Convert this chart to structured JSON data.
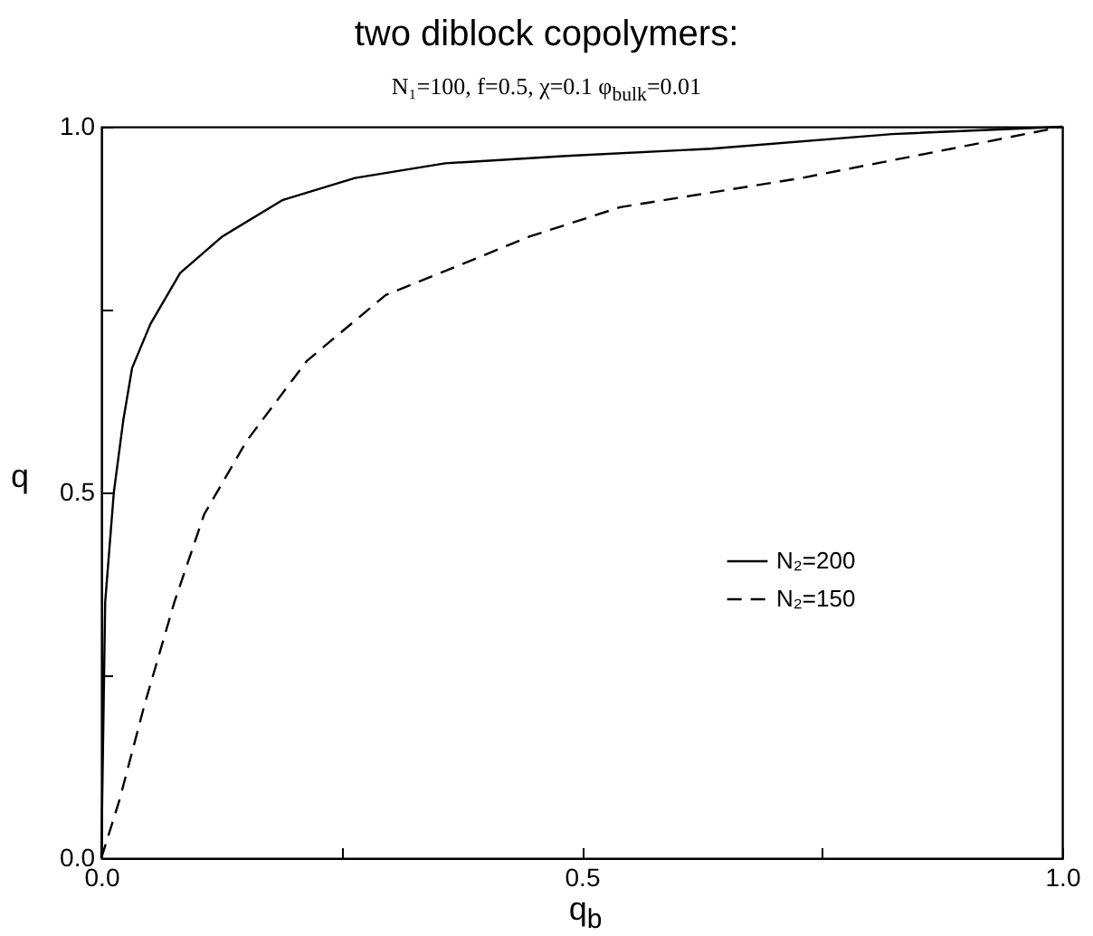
{
  "chart_data": {
    "type": "line",
    "title": "two diblock copolymers:",
    "subtitle": "N₁=100, f=0.5, χ=0.1 φ$_{bulk}$=0.01",
    "xlabel": "q$_{b}$",
    "ylabel": "q",
    "xlim": [
      0,
      1
    ],
    "ylim": [
      0,
      1
    ],
    "xticks": [
      {
        "value": 0,
        "label": "0.0"
      },
      {
        "value": 0.25,
        "label": null
      },
      {
        "value": 0.5,
        "label": "0.5"
      },
      {
        "value": 0.75,
        "label": null
      },
      {
        "value": 1,
        "label": "1.0"
      }
    ],
    "yticks": [
      {
        "value": 0,
        "label": "0.0"
      },
      {
        "value": 0.25,
        "label": null
      },
      {
        "value": 0.5,
        "label": "0.5"
      },
      {
        "value": 0.75,
        "label": null
      },
      {
        "value": 1,
        "label": "1.0"
      }
    ],
    "legend": "right",
    "grid": false,
    "series": [
      {
        "name": "N₂=200",
        "color": "#000000",
        "line_style": "solid",
        "x": [
          0,
          0.004,
          0.013,
          0.023,
          0.032,
          0.051,
          0.082,
          0.126,
          0.189,
          0.264,
          0.358,
          0.484,
          0.635,
          0.823,
          1.0
        ],
        "values": [
          0,
          0.35,
          0.5,
          0.6,
          0.67,
          0.73,
          0.8,
          0.85,
          0.9,
          0.93,
          0.95,
          0.96,
          0.97,
          0.99,
          1.0
        ]
      },
      {
        "name": "N₂=150",
        "color": "#000000",
        "line_style": "dashed",
        "x": [
          0,
          0.019,
          0.045,
          0.076,
          0.107,
          0.151,
          0.214,
          0.296,
          0.39,
          0.446,
          0.54,
          0.729,
          0.885,
          1.0
        ],
        "values": [
          0,
          0.08,
          0.21,
          0.35,
          0.47,
          0.57,
          0.68,
          0.77,
          0.82,
          0.85,
          0.89,
          0.93,
          0.97,
          1.0
        ]
      }
    ]
  }
}
